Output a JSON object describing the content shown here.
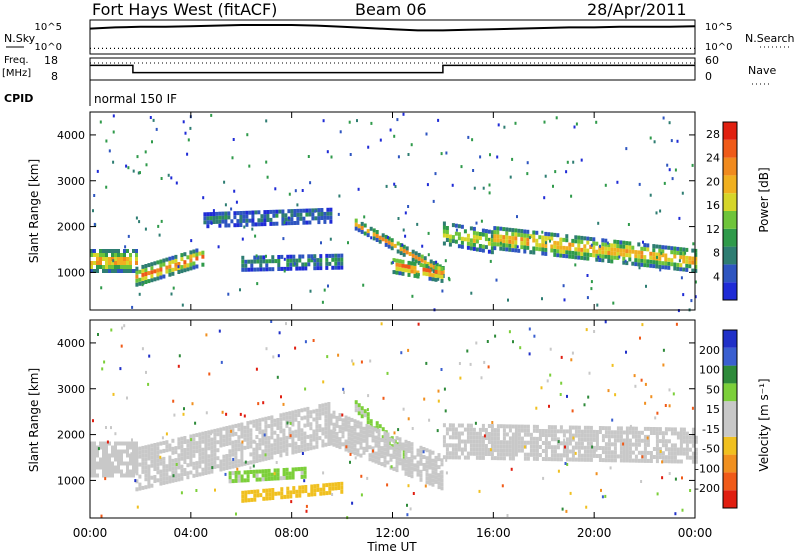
{
  "header": {
    "station": "Fort Hays West (fitACF)",
    "beam": "Beam 06",
    "date": "28/Apr/2011"
  },
  "status_panel": {
    "nsky_label": "N.Sky",
    "nsearch_label": "N.Search",
    "noise_ticks": [
      "10^5",
      "10^0"
    ],
    "freq_label_1": "Freq.",
    "freq_label_2": "[MHz]",
    "freq_ticks": [
      "18",
      "8"
    ],
    "nave_label": "Nave",
    "nave_ticks": [
      "60",
      "0"
    ],
    "cpid_label": "CPID",
    "cpid_value": "normal 150 IF"
  },
  "colors": {
    "power": [
      "#1f2bd6",
      "#2e55c0",
      "#2e7d72",
      "#2f9a4a",
      "#6ec43a",
      "#d6d62a",
      "#f0b020",
      "#f08a1e",
      "#ef5a18",
      "#e02010"
    ],
    "velocity": [
      "#2030c8",
      "#3a5fd0",
      "#2e8a3a",
      "#7ccf3a",
      "#c8c8c8",
      "#c8c8c8",
      "#f0c020",
      "#f09020",
      "#f05a18",
      "#e01e10"
    ]
  },
  "chart_data": [
    {
      "type": "line",
      "title": "N.Sky / N.Search",
      "x_hours": [
        0,
        1,
        2,
        3,
        4,
        5,
        6,
        7,
        8,
        9,
        10,
        11,
        12,
        13,
        14,
        15,
        16,
        17,
        18,
        19,
        20,
        21,
        22,
        23,
        24
      ],
      "ylim_log10": [
        0,
        5
      ],
      "series": [
        {
          "name": "N.Sky",
          "values": [
            3.9,
            4.1,
            4.2,
            4.2,
            4.3,
            4.4,
            4.5,
            4.5,
            4.5,
            4.4,
            4.2,
            4.0,
            3.8,
            3.6,
            3.6,
            3.7,
            3.8,
            3.9,
            4.0,
            4.1,
            4.1,
            4.2,
            4.2,
            4.2,
            4.3
          ]
        },
        {
          "name": "N.Search",
          "values": [
            0.6,
            0.6,
            0.6,
            0.6,
            0.6,
            0.6,
            0.6,
            0.6,
            0.6,
            0.6,
            0.6,
            0.6,
            0.6,
            0.6,
            0.6,
            0.6,
            0.6,
            0.6,
            0.6,
            0.6,
            0.6,
            0.6,
            0.6,
            0.6,
            0.6
          ]
        }
      ]
    },
    {
      "type": "line",
      "title": "Freq. / Nave",
      "x_hours": [
        0,
        1.7,
        1.7,
        14.0,
        14.0,
        24
      ],
      "series": [
        {
          "name": "Freq.",
          "values": [
            15,
            15,
            11,
            11,
            15,
            15
          ]
        },
        {
          "name": "Nave",
          "values": [
            50,
            50,
            50,
            50,
            50,
            50
          ]
        }
      ],
      "ylim_freq": [
        8,
        18
      ],
      "ylim_nave": [
        0,
        60
      ]
    },
    {
      "type": "heatmap",
      "quantity": "Power",
      "xlabel": "",
      "ylabel": "Slant Range [km]",
      "xlim_hours": [
        0,
        24
      ],
      "ylim_km": [
        180,
        4500
      ],
      "y_ticks": [
        1000,
        2000,
        3000,
        4000
      ],
      "colorbar_label": "Power [dB]",
      "colorbar_ticks": [
        4,
        8,
        12,
        16,
        20,
        24,
        28
      ],
      "colorbar_range": [
        0,
        30
      ],
      "bands": [
        {
          "start": 0.0,
          "end": 1.8,
          "center_km": [
            1300,
            1300
          ],
          "width_km": 450,
          "value": 22
        },
        {
          "start": 1.8,
          "end": 4.5,
          "center_km": [
            950,
            1400
          ],
          "width_km": 350,
          "value": 24
        },
        {
          "start": 4.5,
          "end": 9.5,
          "center_km": [
            2200,
            2300
          ],
          "width_km": 300,
          "value": 8
        },
        {
          "start": 6.0,
          "end": 10.0,
          "center_km": [
            1250,
            1300
          ],
          "width_km": 300,
          "value": 10
        },
        {
          "start": 10.5,
          "end": 14.0,
          "center_km": [
            2100,
            1050
          ],
          "width_km": 200,
          "value": 22
        },
        {
          "start": 12.0,
          "end": 14.0,
          "center_km": [
            1200,
            1000
          ],
          "width_km": 300,
          "value": 26
        },
        {
          "start": 14.0,
          "end": 16.0,
          "center_km": [
            1900,
            1700
          ],
          "width_km": 450,
          "value": 18
        },
        {
          "start": 16.0,
          "end": 24.0,
          "center_km": [
            1800,
            1300
          ],
          "width_km": 450,
          "value": 22
        }
      ]
    },
    {
      "type": "heatmap",
      "quantity": "Velocity",
      "xlabel": "Time UT",
      "ylabel": "Slant Range [km]",
      "xlim_hours": [
        0,
        24
      ],
      "ylim_km": [
        180,
        4500
      ],
      "x_ticks": [
        "00:00",
        "04:00",
        "08:00",
        "12:00",
        "16:00",
        "20:00",
        "00:00"
      ],
      "y_ticks": [
        1000,
        2000,
        3000,
        4000
      ],
      "colorbar_label": "Velocity [m s⁻¹]",
      "colorbar_ticks": [
        200,
        100,
        50,
        15,
        -15,
        -50,
        -100,
        -200
      ],
      "colorbar_range": [
        -250,
        250
      ],
      "bands": [
        {
          "start": 0.0,
          "end": 1.8,
          "center_km": [
            1500,
            1500
          ],
          "width_km": 700,
          "value": 0
        },
        {
          "start": 1.8,
          "end": 9.5,
          "center_km": [
            1300,
            2300
          ],
          "width_km": 900,
          "value": 0
        },
        {
          "start": 5.5,
          "end": 8.5,
          "center_km": [
            1150,
            1250
          ],
          "width_km": 250,
          "value": 60
        },
        {
          "start": 6.0,
          "end": 10.0,
          "center_km": [
            700,
            900
          ],
          "width_km": 200,
          "value": -70
        },
        {
          "start": 10.5,
          "end": 12.5,
          "center_km": [
            2700,
            1600
          ],
          "width_km": 250,
          "value": 60
        },
        {
          "start": 9.5,
          "end": 14.0,
          "center_km": [
            2200,
            1200
          ],
          "width_km": 700,
          "value": 0
        },
        {
          "start": 14.0,
          "end": 24.0,
          "center_km": [
            1900,
            1800
          ],
          "width_km": 700,
          "value": 0
        }
      ]
    }
  ]
}
